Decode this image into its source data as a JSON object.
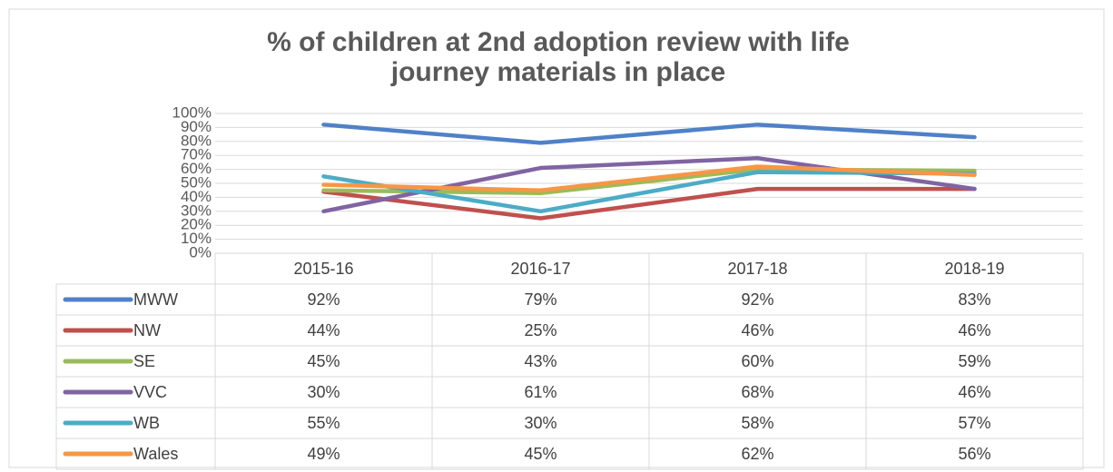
{
  "chart_data": {
    "type": "line",
    "title": [
      "% of children at 2nd adoption review with life",
      "journey materials in place"
    ],
    "categories": [
      "2015-16",
      "2016-17",
      "2017-18",
      "2018-19"
    ],
    "series": [
      {
        "name": "MWW",
        "color": "#4f81c8",
        "values": [
          92,
          79,
          92,
          83
        ],
        "value_labels": [
          "92%",
          "79%",
          "92%",
          "83%"
        ]
      },
      {
        "name": "NW",
        "color": "#c0504d",
        "values": [
          44,
          25,
          46,
          46
        ],
        "value_labels": [
          "44%",
          "25%",
          "46%",
          "46%"
        ]
      },
      {
        "name": "SE",
        "color": "#9bbb59",
        "values": [
          45,
          43,
          60,
          59
        ],
        "value_labels": [
          "45%",
          "43%",
          "60%",
          "59%"
        ]
      },
      {
        "name": "VVC",
        "color": "#8064a2",
        "values": [
          30,
          61,
          68,
          46
        ],
        "value_labels": [
          "30%",
          "61%",
          "68%",
          "46%"
        ]
      },
      {
        "name": "WB",
        "color": "#4bacc6",
        "values": [
          55,
          30,
          58,
          57
        ],
        "value_labels": [
          "55%",
          "30%",
          "58%",
          "57%"
        ]
      },
      {
        "name": "Wales",
        "color": "#f79646",
        "values": [
          49,
          45,
          62,
          56
        ],
        "value_labels": [
          "49%",
          "45%",
          "62%",
          "56%"
        ]
      }
    ],
    "ylim": [
      0,
      100
    ],
    "yticks": [
      {
        "value": 0,
        "label": "0%"
      },
      {
        "value": 10,
        "label": "10%"
      },
      {
        "value": 20,
        "label": "20%"
      },
      {
        "value": 30,
        "label": "30%"
      },
      {
        "value": 40,
        "label": "40%"
      },
      {
        "value": 50,
        "label": "50%"
      },
      {
        "value": 60,
        "label": "60%"
      },
      {
        "value": 70,
        "label": "70%"
      },
      {
        "value": 80,
        "label": "80%"
      },
      {
        "value": 90,
        "label": "90%"
      },
      {
        "value": 100,
        "label": "100%"
      }
    ],
    "grid": true
  }
}
